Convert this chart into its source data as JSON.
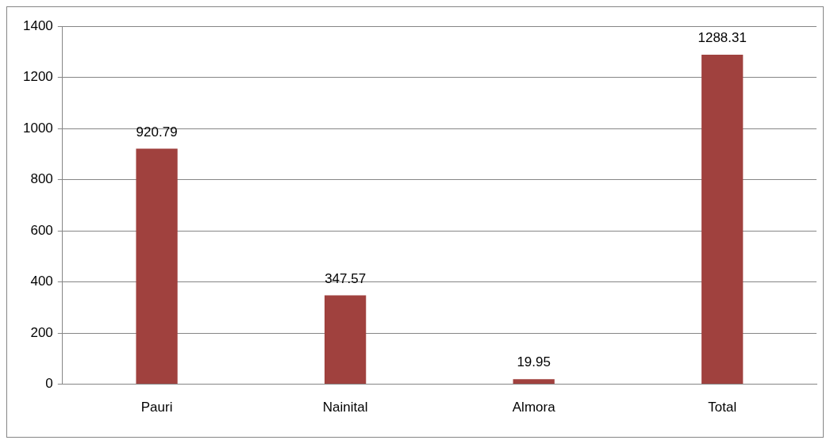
{
  "chart_data": {
    "type": "bar",
    "categories": [
      "Pauri",
      "Nainital",
      "Almora",
      "Total"
    ],
    "series": [
      {
        "color": "#a0413e",
        "values": [
          920.79,
          347.57,
          19.95,
          1288.31
        ],
        "value_labels": [
          "920.79",
          "347.57",
          "19.95",
          "1288.31"
        ]
      }
    ],
    "ylim": [
      0,
      1400
    ],
    "yticks": [
      0,
      200,
      400,
      600,
      800,
      1000,
      1200,
      1400
    ],
    "grid": "y",
    "legend": false
  }
}
